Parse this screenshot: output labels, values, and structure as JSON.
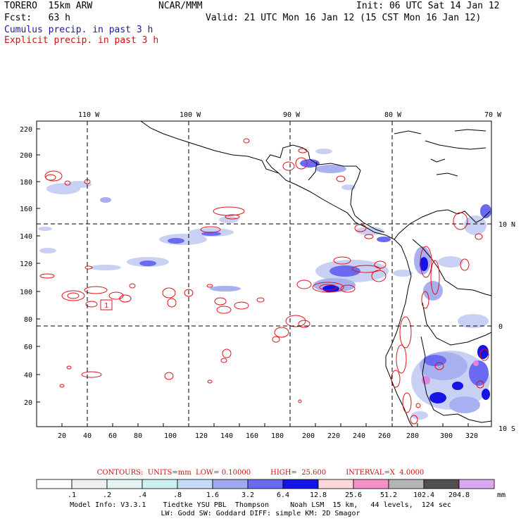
{
  "header": {
    "model": "TORERO  15km ARW",
    "org": "NCAR/MMM",
    "init": "Init: 06 UTC Sat 14 Jan 12",
    "fcst": "Fcst:   63 h",
    "valid": "Valid: 21 UTC Mon 16 Jan 12 (15 CST Mon 16 Jan 12)",
    "cumulus": "Cumulus precip. in past 3 h",
    "explicit": "Explicit precip. in past 3 h"
  },
  "map": {
    "top_lon_labels": [
      "110 W",
      "100 W",
      "90 W",
      "80 W",
      "70 W"
    ],
    "right_lat_labels": [
      "10 N",
      "0",
      "10 S"
    ],
    "y_ticks": [
      "220",
      "200",
      "180",
      "160",
      "140",
      "120",
      "100",
      "80",
      "60",
      "40",
      "20"
    ],
    "x_ticks": [
      "20",
      "40",
      "60",
      "80",
      "100",
      "120",
      "140",
      "160",
      "180",
      "200",
      "220",
      "240",
      "260",
      "280",
      "300",
      "320"
    ],
    "box_label": "1",
    "colors": {
      "coast": "#000000",
      "contour": "#e0101a",
      "light_blue": "#c8d0f4",
      "mid_blue": "#6a6af0",
      "dark_blue": "#1414e6",
      "magenta": "#e082e0"
    }
  },
  "legend": {
    "contours": "CONTOURS:  UNITS=mm  LOW= 0.10000",
    "high": "HIGH=  25.600",
    "interval": "INTERVAL=X  4.0000",
    "labels": [
      ".1",
      ".2",
      ".4",
      ".8",
      "1.6",
      "3.2",
      "6.4",
      "12.8",
      "25.6",
      "51.2",
      "102.4",
      "204.8"
    ],
    "units": "mm",
    "colors": [
      "#ffffff",
      "#f0f0f0",
      "#e4f4f4",
      "#ccf0f0",
      "#c4dcf8",
      "#a0a8f0",
      "#6a6af0",
      "#1414e6",
      "#fcd8d8",
      "#f890c8",
      "#b4b4b4",
      "#505050",
      "#d8a8f0"
    ]
  },
  "footer": {
    "line1": "Model Info: V3.3.1    Tiedtke YSU PBL  Thompson     Noah LSM  15 km,   44 levels,  124 sec",
    "line2": "LW: Godd SW: Goddard DIFF: simple KM: 2D Smagor"
  }
}
